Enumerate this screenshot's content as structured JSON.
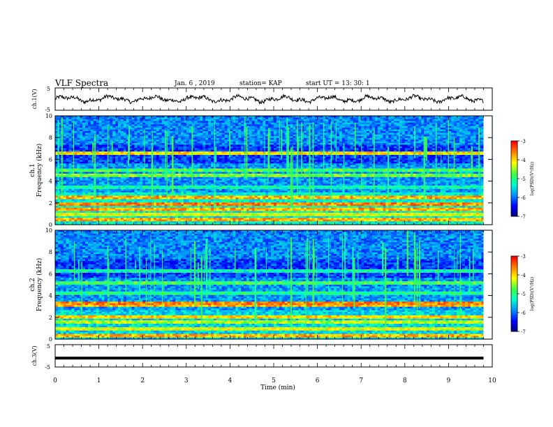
{
  "header": {
    "title": "VLF Spectra",
    "date": "Jan. 6 , 2019",
    "station": "station= KAP",
    "start": "start UT = 13: 30: 1"
  },
  "chart_data": [
    {
      "type": "line",
      "name": "ch1-waveform",
      "ylabel": "ch.1(V)",
      "xlim": [
        0,
        10
      ],
      "ylim": [
        -5,
        5
      ],
      "yticks": [
        "5",
        "-5"
      ],
      "note": "noisy waveform oscillating around ~0 V with small slow undulations"
    },
    {
      "type": "heatmap",
      "name": "ch1-spectrogram",
      "ylabel_lines": [
        "ch.1",
        "Frequency (kHz)"
      ],
      "xlim": [
        0,
        10
      ],
      "ylim": [
        0,
        10
      ],
      "yticks": [
        "0",
        "2",
        "4",
        "6",
        "8",
        "10"
      ],
      "colorbar": {
        "label": "log(PSD)(V²/Hz)",
        "ticks": [
          "-3",
          "-4",
          "-5",
          "-6",
          "-7"
        ],
        "range": [
          -7,
          -3
        ]
      }
    },
    {
      "type": "heatmap",
      "name": "ch2-spectrogram",
      "ylabel_lines": [
        "ch.2",
        "Frequency (kHz)"
      ],
      "xlim": [
        0,
        10
      ],
      "ylim": [
        0,
        10
      ],
      "yticks": [
        "0",
        "2",
        "4",
        "6",
        "8",
        "10"
      ],
      "colorbar": {
        "label": "log(PSD)(V²/Hz)",
        "ticks": [
          "-3",
          "-4",
          "-5",
          "-6",
          "-7"
        ],
        "range": [
          -7,
          -3
        ]
      }
    },
    {
      "type": "line",
      "name": "ch3-waveform",
      "ylabel": "ch.3(V)",
      "xlim": [
        0,
        10
      ],
      "ylim": [
        -5,
        5
      ],
      "yticks": [
        "5",
        "-5"
      ],
      "x": [
        0,
        9.8
      ],
      "y": [
        -1,
        -1
      ]
    }
  ],
  "xaxis": {
    "label": "Time (min)",
    "ticks": [
      "0",
      "1",
      "2",
      "3",
      "4",
      "5",
      "6",
      "7",
      "8",
      "9",
      "10"
    ]
  },
  "colors": {
    "cmap": [
      "#00007a",
      "#0000ff",
      "#0090ff",
      "#00ffd0",
      "#40ff40",
      "#ffff00",
      "#ff8000",
      "#ff0000",
      "#ffffff"
    ]
  }
}
